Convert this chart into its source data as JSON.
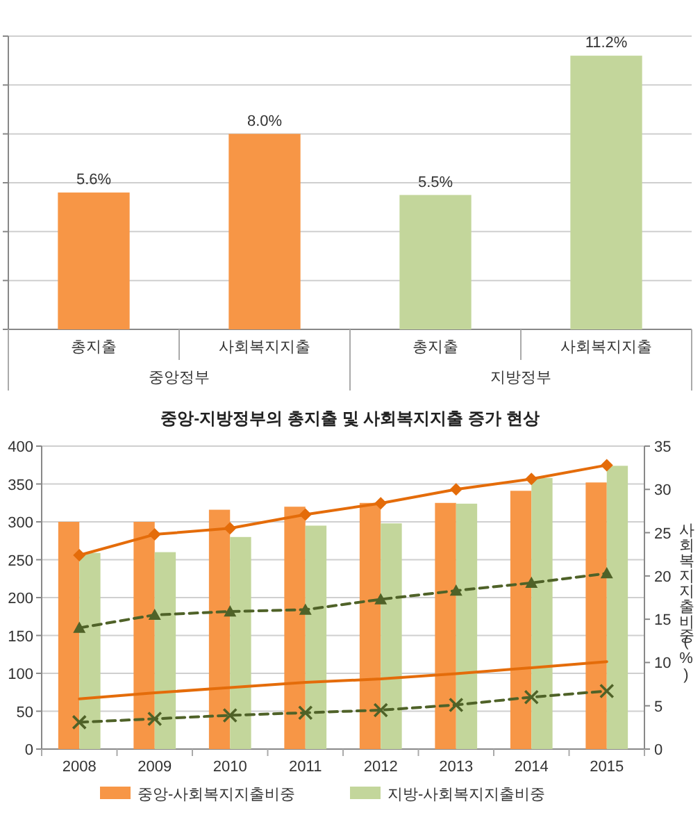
{
  "chart_data": [
    {
      "type": "bar",
      "categories": [
        "총지출",
        "사회복지지출",
        "총지출",
        "사회복지지출"
      ],
      "values": [
        5.6,
        8.0,
        5.5,
        11.2
      ],
      "colors": [
        "#f79646",
        "#f79646",
        "#c3d69b",
        "#c3d69b"
      ],
      "value_labels": [
        "5.6%",
        "8.0%",
        "5.5%",
        "11.2%"
      ],
      "ylim": [
        0,
        12
      ],
      "yticks": [
        {
          "value": 0,
          "label": null
        },
        {
          "value": 2,
          "label": null
        },
        {
          "value": 4,
          "label": null
        },
        {
          "value": 6,
          "label": null
        },
        {
          "value": 8,
          "label": null
        },
        {
          "value": 10,
          "label": null
        },
        {
          "value": 12,
          "label": null
        }
      ],
      "grid": "y",
      "tick_labels": "x",
      "annotations": [
        "중앙정부",
        "지방정부"
      ]
    },
    {
      "type": "bar",
      "title": "중앙-지방정부의 총지출 및 사회복지지출 증가 현상",
      "categories": [
        "2008",
        "2009",
        "2010",
        "2011",
        "2012",
        "2013",
        "2014",
        "2015"
      ],
      "series": [
        {
          "type": "bar",
          "name": "중앙-사회복지지출비중",
          "color": "#f79646",
          "values": [
            300,
            300,
            316,
            320,
            325,
            325,
            341,
            352
          ]
        },
        {
          "type": "bar",
          "name": "지방-사회복지지출비중",
          "color": "#c3d69b",
          "values": [
            259,
            260,
            280,
            295,
            298,
            324,
            358,
            374
          ]
        },
        {
          "type": "line",
          "axis": "y2",
          "color": "#e46c0a",
          "marker": "diamond",
          "line_style": "solid",
          "values": [
            22.4,
            24.8,
            25.5,
            27.1,
            28.4,
            30.0,
            31.2,
            32.8
          ]
        },
        {
          "type": "line",
          "axis": "y2",
          "color": "#4f6228",
          "marker": "triangle",
          "line_style": "dashed",
          "values": [
            14.0,
            15.5,
            15.9,
            16.1,
            17.3,
            18.3,
            19.2,
            20.3
          ]
        },
        {
          "type": "line",
          "axis": "y2",
          "color": "#e46c0a",
          "marker": "none",
          "line_style": "solid",
          "values": [
            5.8,
            6.5,
            7.1,
            7.7,
            8.1,
            8.7,
            9.4,
            10.1
          ]
        },
        {
          "type": "line",
          "axis": "y2",
          "color": "#4f6228",
          "marker": "cross",
          "line_style": "dashed",
          "values": [
            3.1,
            3.5,
            3.9,
            4.2,
            4.5,
            5.1,
            6.0,
            6.7
          ]
        }
      ],
      "ylim": [
        0,
        400
      ],
      "yticks": [
        0,
        50,
        100,
        150,
        200,
        250,
        300,
        350,
        400
      ],
      "y2lim": [
        0,
        35
      ],
      "y2ticks": [
        0,
        5,
        10,
        15,
        20,
        25,
        30,
        35
      ],
      "y2label": "사회복지지출비중(%)",
      "grid": "y",
      "legend": "bottom"
    }
  ]
}
